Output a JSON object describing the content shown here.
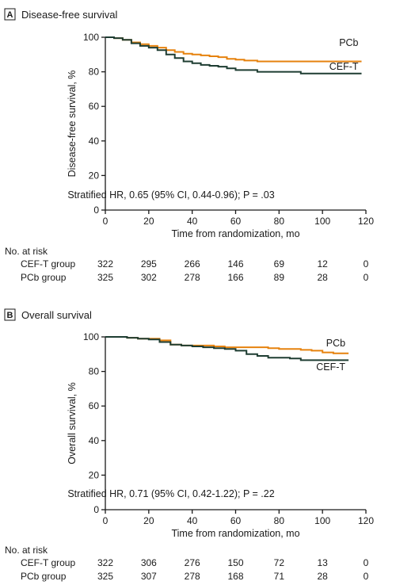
{
  "panels": [
    {
      "badge": "A",
      "title": "Disease-free survival",
      "annotation": "Stratified HR, 0.65 (95% CI, 0.44-0.96); P = .03",
      "risk_header": "No. at risk",
      "risk_groups": [
        {
          "label": "CEF-T group",
          "values": [
            "322",
            "295",
            "266",
            "146",
            "69",
            "12",
            "0"
          ]
        },
        {
          "label": "PCb group",
          "values": [
            "325",
            "302",
            "278",
            "166",
            "89",
            "28",
            "0"
          ]
        }
      ]
    },
    {
      "badge": "B",
      "title": "Overall survival",
      "annotation": "Stratified HR, 0.71 (95% CI, 0.42-1.22); P = .22",
      "risk_header": "No. at risk",
      "risk_groups": [
        {
          "label": "CEF-T group",
          "values": [
            "322",
            "306",
            "276",
            "150",
            "72",
            "13",
            "0"
          ]
        },
        {
          "label": "PCb group",
          "values": [
            "325",
            "307",
            "278",
            "168",
            "71",
            "28",
            "0"
          ]
        }
      ]
    }
  ],
  "chart_data": [
    {
      "type": "line",
      "title": "Disease-free survival",
      "xlabel": "Time from randomization, mo",
      "ylabel": "Disease-free survival, %",
      "xlim": [
        0,
        120
      ],
      "ylim": [
        0,
        100
      ],
      "xticks": [
        0,
        20,
        40,
        60,
        80,
        100,
        120
      ],
      "yticks": [
        0,
        20,
        40,
        60,
        80,
        100
      ],
      "grid": false,
      "series": [
        {
          "name": "PCb",
          "color": "#e6820e",
          "x": [
            0,
            4,
            8,
            12,
            16,
            20,
            24,
            28,
            32,
            36,
            40,
            44,
            48,
            52,
            56,
            60,
            64,
            70,
            75,
            80,
            90,
            100,
            110,
            118
          ],
          "y": [
            100,
            99.5,
            98.5,
            97,
            96,
            95,
            94,
            92.5,
            91.5,
            90.5,
            90,
            89.5,
            89,
            88.5,
            87.5,
            87,
            86.5,
            86,
            86,
            86,
            86,
            86,
            86,
            86
          ]
        },
        {
          "name": "CEF-T",
          "color": "#1e3d32",
          "x": [
            0,
            4,
            8,
            12,
            16,
            20,
            24,
            28,
            32,
            36,
            40,
            44,
            48,
            52,
            56,
            60,
            64,
            70,
            75,
            80,
            85,
            90,
            100,
            110,
            118
          ],
          "y": [
            100,
            99.5,
            98.5,
            96.5,
            95,
            94,
            92.5,
            90,
            88,
            86,
            85,
            84,
            83.5,
            83,
            82,
            81,
            81,
            80,
            80,
            80,
            80,
            79,
            79,
            79,
            79
          ]
        }
      ]
    },
    {
      "type": "line",
      "title": "Overall survival",
      "xlabel": "Time from randomization, mo",
      "ylabel": "Overall survival, %",
      "xlim": [
        0,
        120
      ],
      "ylim": [
        0,
        100
      ],
      "xticks": [
        0,
        20,
        40,
        60,
        80,
        100,
        120
      ],
      "yticks": [
        0,
        20,
        40,
        60,
        80,
        100
      ],
      "grid": false,
      "series": [
        {
          "name": "PCb",
          "color": "#e6820e",
          "x": [
            0,
            5,
            10,
            15,
            20,
            25,
            30,
            35,
            40,
            45,
            50,
            55,
            60,
            65,
            70,
            75,
            80,
            85,
            90,
            95,
            100,
            105,
            112
          ],
          "y": [
            100,
            100,
            99.5,
            99,
            99,
            98,
            95.5,
            95,
            95,
            95,
            94.5,
            94,
            94,
            94,
            94,
            93.5,
            93,
            93,
            92.5,
            92,
            91,
            90.5,
            90.5
          ]
        },
        {
          "name": "CEF-T",
          "color": "#1e3d32",
          "x": [
            0,
            5,
            10,
            15,
            20,
            25,
            30,
            35,
            40,
            45,
            50,
            55,
            60,
            65,
            70,
            75,
            80,
            85,
            90,
            95,
            100,
            105,
            112
          ],
          "y": [
            100,
            100,
            99.5,
            99,
            98.5,
            97,
            95.5,
            95,
            94.5,
            94,
            93.5,
            93,
            92,
            90,
            89,
            88,
            88,
            87.5,
            86.5,
            86.5,
            86.5,
            86.5,
            86.5
          ]
        }
      ]
    }
  ]
}
